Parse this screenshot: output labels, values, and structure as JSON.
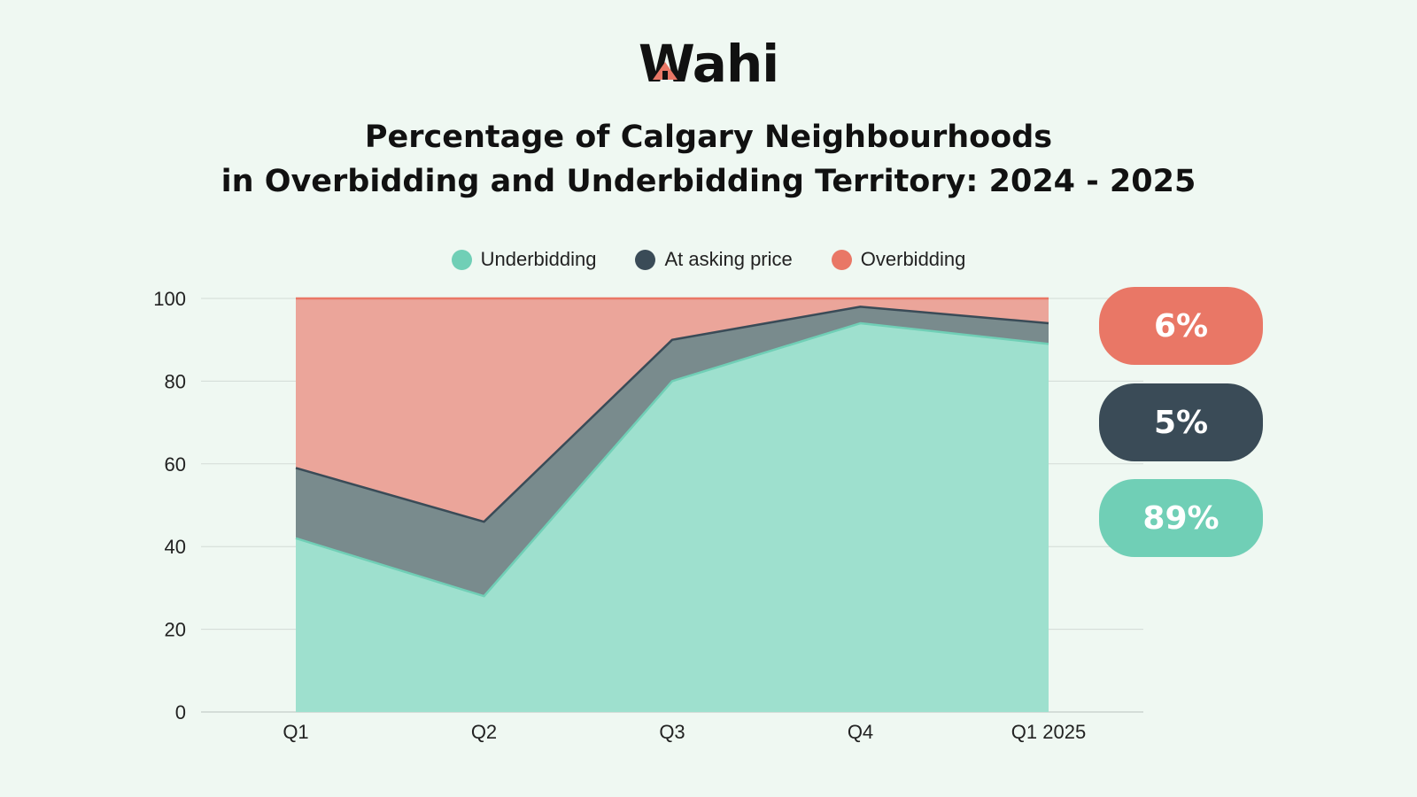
{
  "logo": {
    "text": "Wahi"
  },
  "title": {
    "line1": "Percentage of Calgary Neighbourhoods",
    "line2": "in Overbidding and Underbidding Territory: 2024 - 2025"
  },
  "colors": {
    "underbidding": "#70cfb6",
    "at_asking": "#3a4b57",
    "overbidding": "#e97766",
    "background": "#eff8f2"
  },
  "summary_badges": [
    {
      "label": "6%",
      "series": "Overbidding"
    },
    {
      "label": "5%",
      "series": "At asking price"
    },
    {
      "label": "89%",
      "series": "Underbidding"
    }
  ],
  "chart_data": {
    "type": "area",
    "stacked": true,
    "categories": [
      "Q1",
      "Q2",
      "Q3",
      "Q4",
      "Q1 2025"
    ],
    "series": [
      {
        "name": "Underbidding",
        "values": [
          42,
          28,
          80,
          94,
          89
        ]
      },
      {
        "name": "At asking price",
        "values": [
          17,
          18,
          10,
          4,
          5
        ]
      },
      {
        "name": "Overbidding",
        "values": [
          41,
          54,
          10,
          2,
          6
        ]
      }
    ],
    "ylim": [
      0,
      100
    ],
    "yticks": [
      "0",
      "20",
      "40",
      "60",
      "80",
      "100"
    ],
    "legend": "top-center",
    "grid": true
  }
}
